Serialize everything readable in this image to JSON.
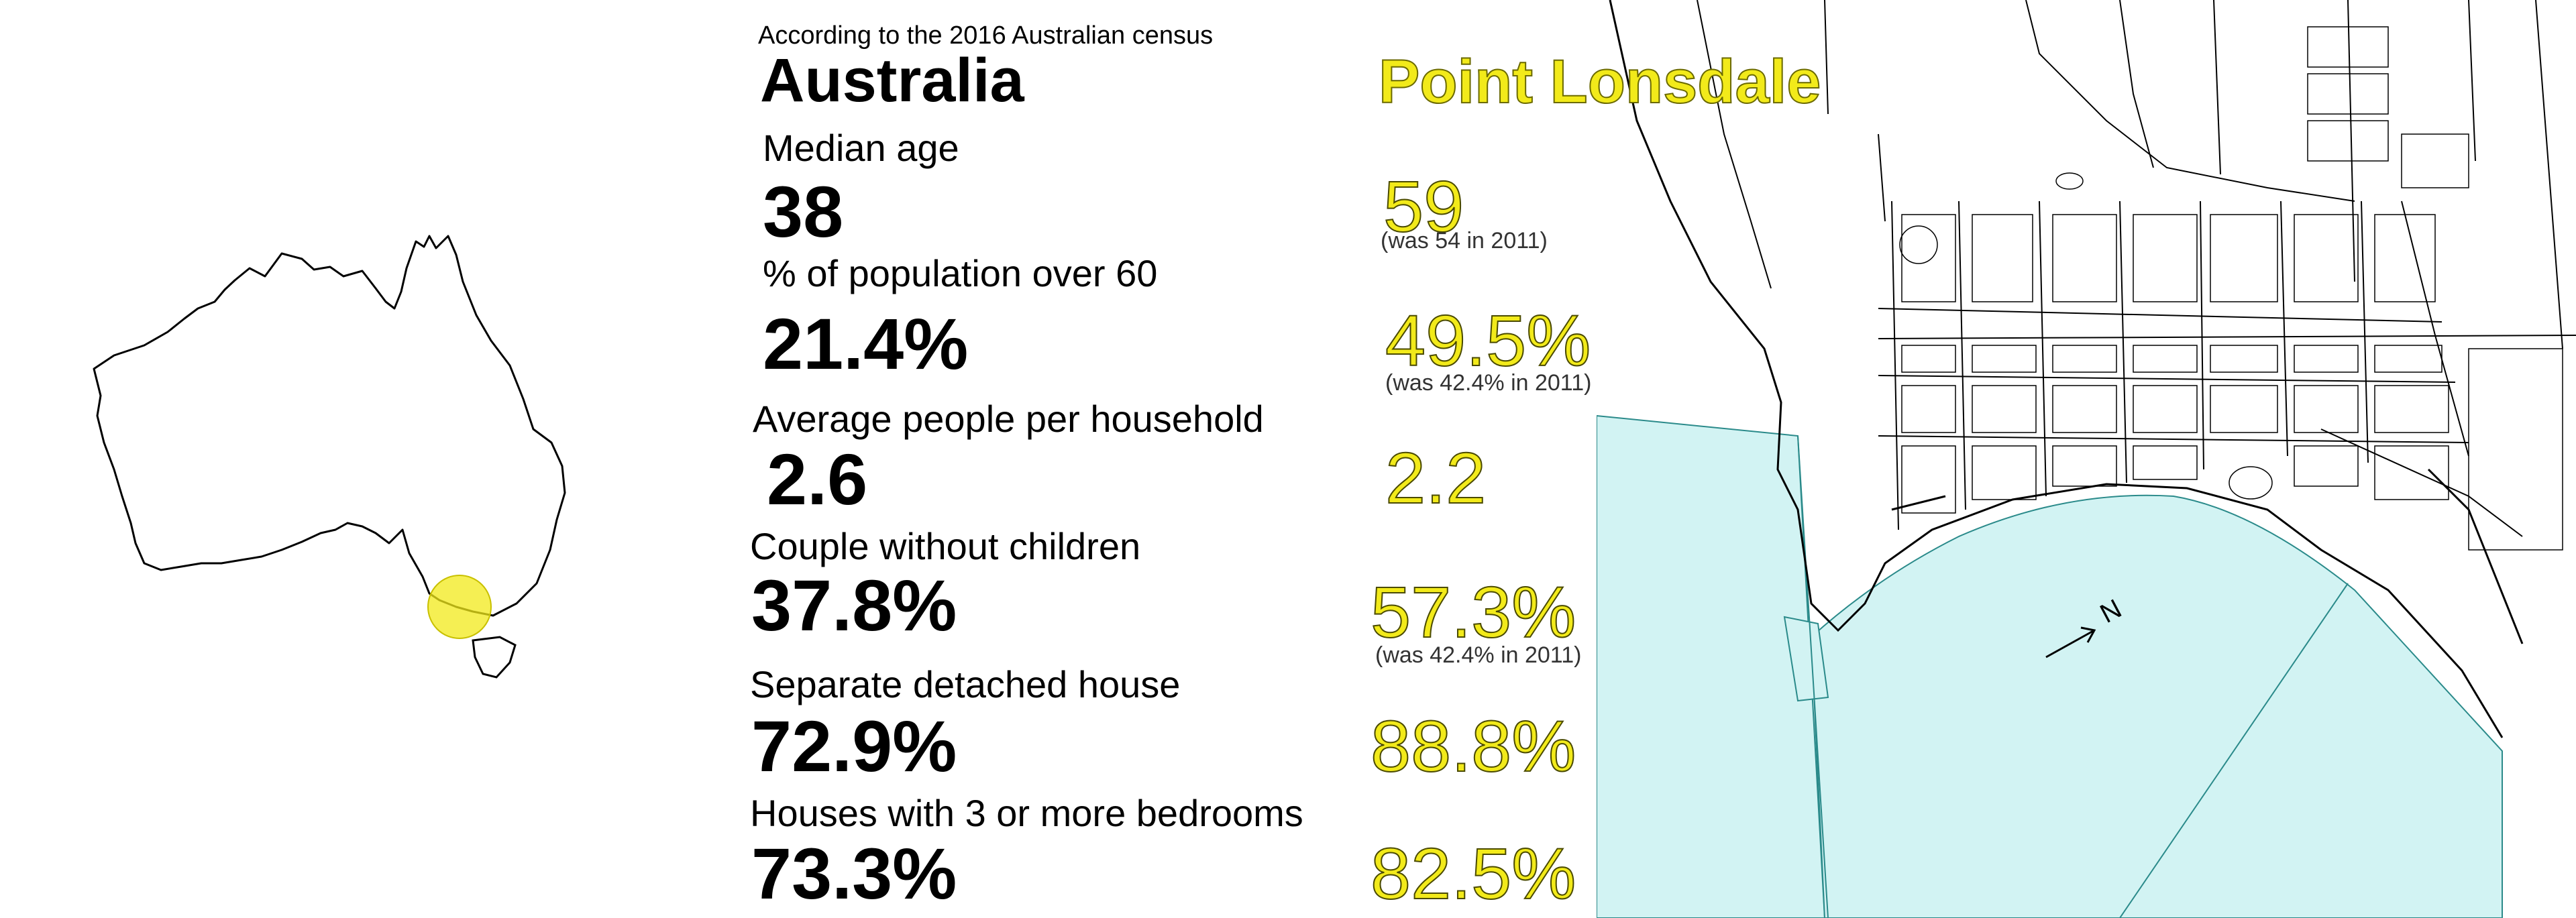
{
  "source_note": "According to the 2016 Australian census",
  "country": "Australia",
  "place": "Point Lonsdale",
  "stats": [
    {
      "label": "Median age",
      "national": "38",
      "local": "59",
      "note": "(was 54 in 2011)"
    },
    {
      "label": "% of population over 60",
      "national": "21.4%",
      "local": "49.5%",
      "note": "(was 42.4% in 2011)"
    },
    {
      "label": "Average people per household",
      "national": "2.6",
      "local": "2.2",
      "note": ""
    },
    {
      "label": "Couple without children",
      "national": "37.8%",
      "local": "57.3%",
      "note": "(was 42.4% in 2011)"
    },
    {
      "label": "Separate detached house",
      "national": "72.9%",
      "local": "88.8%",
      "note": ""
    },
    {
      "label": "Houses with 3 or more bedrooms",
      "national": "73.3%",
      "local": "82.5%",
      "note": ""
    }
  ],
  "map": {
    "north_label": "N"
  },
  "colors": {
    "highlight": "#f2ea1a",
    "water": "#d2f3f3",
    "text": "#000000"
  }
}
